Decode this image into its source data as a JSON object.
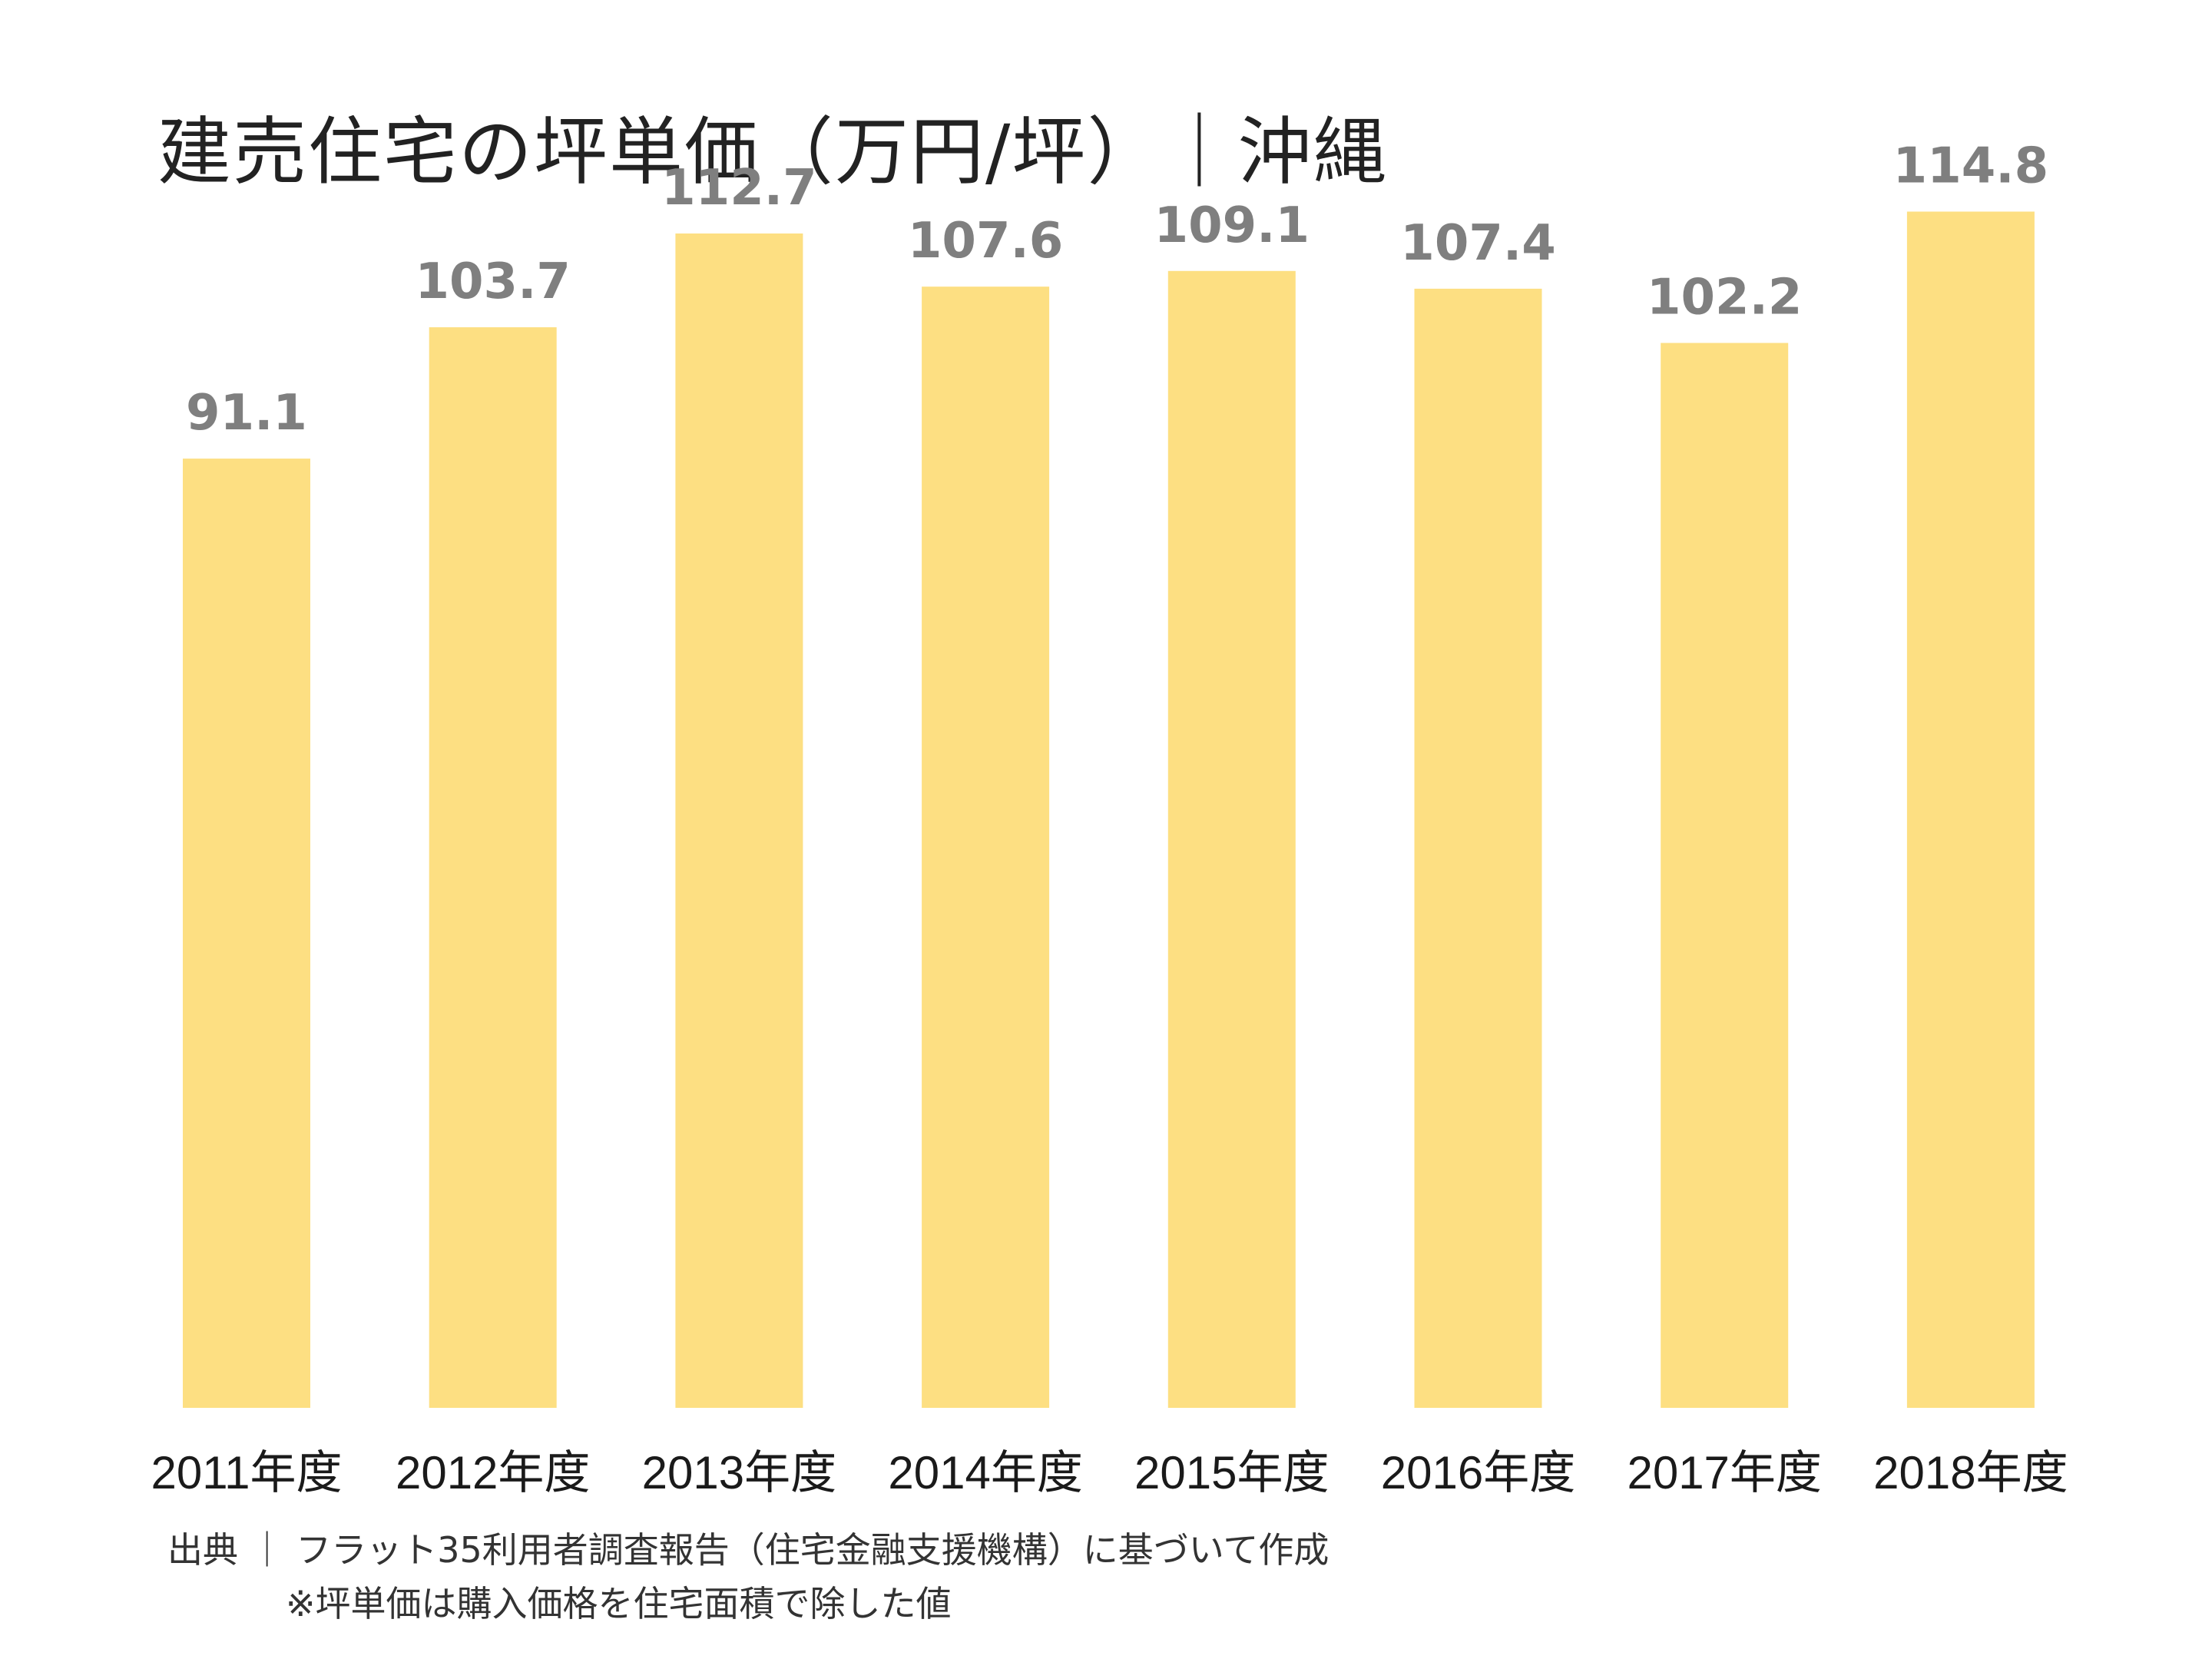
{
  "chart_data": {
    "type": "bar",
    "title": "建売住宅の坪単価（万円/坪）｜沖縄",
    "categories": [
      "2011年度",
      "2012年度",
      "2013年度",
      "2014年度",
      "2015年度",
      "2016年度",
      "2017年度",
      "2018年度"
    ],
    "values": [
      91.1,
      103.7,
      112.7,
      107.6,
      109.1,
      107.4,
      102.2,
      114.8
    ],
    "value_labels": [
      "91.1",
      "103.7",
      "112.7",
      "107.6",
      "109.1",
      "107.4",
      "102.2",
      "114.8"
    ],
    "xlabel": "",
    "ylabel": "",
    "ylim": [
      0,
      127
    ],
    "grid": false,
    "legend": "none",
    "bar_color": "#fddf82"
  },
  "footer": {
    "source": "出典 ｜ フラット35利用者調査報告（住宅金融支援機構）に基づいて作成",
    "note": "※坪単価は購入価格を住宅面積で除した値"
  }
}
